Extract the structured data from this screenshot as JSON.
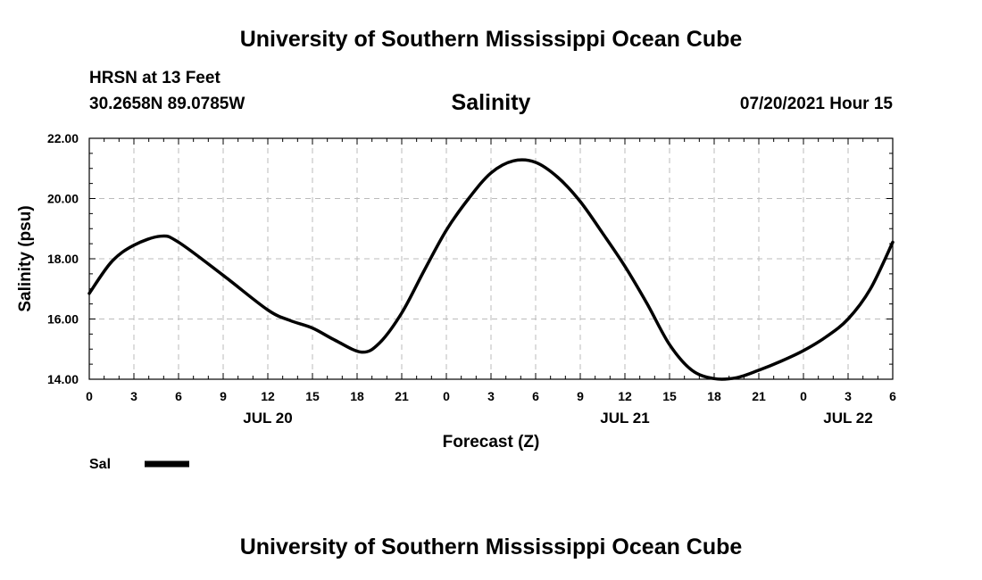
{
  "header": {
    "title": "University of Southern Mississippi Ocean Cube",
    "station": "HRSN at 13 Feet",
    "coordinates": "30.2658N  89.0785W",
    "variable": "Salinity",
    "datetime": "07/20/2021 Hour 15"
  },
  "footer": {
    "title": "University of Southern Mississippi Ocean Cube"
  },
  "colors": {
    "line": "#000000",
    "grid": "#bbbbbb",
    "axis": "#000000"
  },
  "chart_data": {
    "type": "line",
    "title": "Salinity",
    "xlabel": "Forecast (Z)",
    "ylabel": "Salinity (psu)",
    "xlim": [
      0,
      54
    ],
    "ylim": [
      14.0,
      22.0
    ],
    "grid": true,
    "legend_position": "bottom-left",
    "x_ticks": [
      0,
      3,
      6,
      9,
      12,
      15,
      18,
      21,
      24,
      27,
      30,
      33,
      36,
      39,
      42,
      45,
      48,
      51,
      54
    ],
    "x_tick_labels": [
      "0",
      "3",
      "6",
      "9",
      "12",
      "15",
      "18",
      "21",
      "0",
      "3",
      "6",
      "9",
      "12",
      "15",
      "18",
      "21",
      "0",
      "3",
      "6"
    ],
    "y_ticks": [
      14,
      16,
      18,
      20,
      22
    ],
    "y_tick_labels": [
      "14.00",
      "16.00",
      "18.00",
      "20.00",
      "22.00"
    ],
    "date_labels": [
      {
        "label": "JUL 20",
        "x": 12
      },
      {
        "label": "JUL 21",
        "x": 36
      },
      {
        "label": "JUL 22",
        "x": 51
      }
    ],
    "series": [
      {
        "name": "Sal",
        "x": [
          0,
          1.5,
          3,
          4.8,
          6,
          9,
          12,
          13.5,
          15,
          16.5,
          18.3,
          19.5,
          21,
          22.5,
          24,
          25.5,
          27,
          28.5,
          30,
          31.5,
          33,
          34.5,
          36,
          37.5,
          39,
          40.5,
          42,
          43.5,
          45,
          46.5,
          48,
          49.5,
          51,
          52.5,
          54
        ],
        "values": [
          16.85,
          17.9,
          18.45,
          18.75,
          18.55,
          17.45,
          16.3,
          15.95,
          15.7,
          15.3,
          14.9,
          15.2,
          16.2,
          17.6,
          18.95,
          20.0,
          20.85,
          21.25,
          21.2,
          20.7,
          19.9,
          18.85,
          17.75,
          16.5,
          15.15,
          14.3,
          14.02,
          14.05,
          14.3,
          14.6,
          14.95,
          15.4,
          16.0,
          17.0,
          18.55
        ]
      }
    ]
  }
}
